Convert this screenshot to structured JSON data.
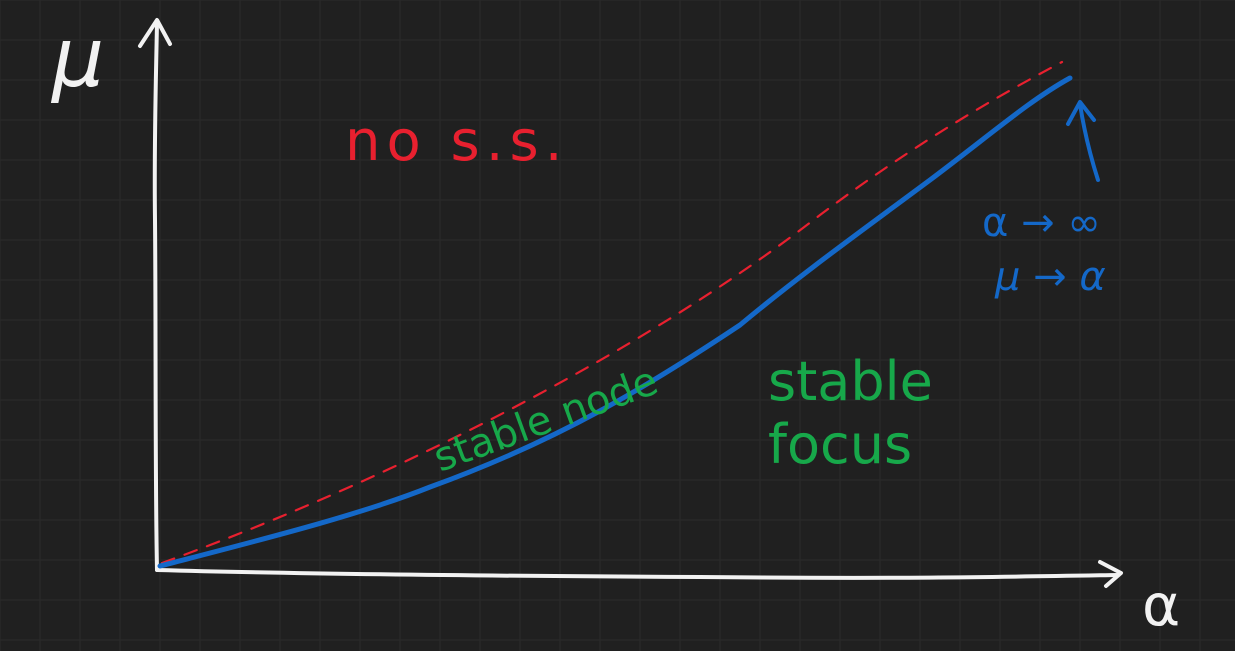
{
  "canvas": {
    "background": "#202020",
    "grid_color": "#2b2b2b",
    "grid": true
  },
  "axes": {
    "y_label": "μ",
    "x_label": "α",
    "color": "#f2f2f2"
  },
  "labels": {
    "no_ss": "no s.s.",
    "stable_node": "stable node",
    "stable_focus_line1": "stable",
    "stable_focus_line2": "focus",
    "limit_line1": "α → ∞",
    "limit_line2": "μ → α"
  },
  "colors": {
    "red": "#e8202f",
    "blue": "#1468c8",
    "green": "#17a84a",
    "white": "#f2f2f2"
  },
  "curves": {
    "boundary_curve": "blue solid curve",
    "asymptote_line": "red dashed line"
  }
}
